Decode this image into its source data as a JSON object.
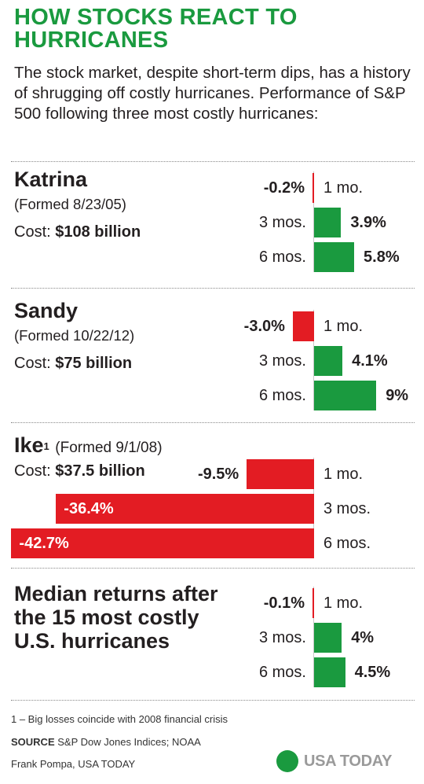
{
  "header": {
    "title": "HOW STOCKS REACT TO HURRICANES",
    "subtitle": "The stock market, despite short-term dips, has a history of shrugging off costly hurricanes. Performance of S&P 500 following three most costly hurricanes:"
  },
  "sections": [
    {
      "name": "Katrina",
      "formed": "(Formed 8/23/05)",
      "cost_label": "Cost:",
      "cost_value": "$108 billion"
    },
    {
      "name": "Sandy",
      "formed": "(Formed 10/22/12)",
      "cost_label": "Cost:",
      "cost_value": "$75 billion"
    },
    {
      "name": "Ike",
      "name_sup": "1",
      "formed": "(Formed 9/1/08)",
      "cost_label": "Cost:",
      "cost_value": "$37.5 billion"
    },
    {
      "name": "Median returns after the 15 most costly U.S. hurricanes"
    }
  ],
  "colors": {
    "positive": "#1a9a3f",
    "negative": "#e31c23",
    "title": "#1a9a3f",
    "brand_dot": "#1a9a3f",
    "brand_text": "#9a9a9a"
  },
  "chart_data": {
    "type": "bar",
    "orientation": "horizontal",
    "title": "HOW STOCKS REACT TO HURRICANES",
    "unit": "%",
    "groups": [
      {
        "name": "Katrina",
        "bars": [
          {
            "period": "1 mo.",
            "value": -0.2,
            "label": "-0.2%"
          },
          {
            "period": "3 mos.",
            "value": 3.9,
            "label": "3.9%"
          },
          {
            "period": "6 mos.",
            "value": 5.8,
            "label": "5.8%"
          }
        ]
      },
      {
        "name": "Sandy",
        "bars": [
          {
            "period": "1 mo.",
            "value": -3.0,
            "label": "-3.0%"
          },
          {
            "period": "3 mos.",
            "value": 4.1,
            "label": "4.1%"
          },
          {
            "period": "6 mos.",
            "value": 9,
            "label": "9%"
          }
        ]
      },
      {
        "name": "Ike",
        "bars": [
          {
            "period": "1 mo.",
            "value": -9.5,
            "label": "-9.5%"
          },
          {
            "period": "3 mos.",
            "value": -36.4,
            "label": "-36.4%"
          },
          {
            "period": "6 mos.",
            "value": -42.7,
            "label": "-42.7%"
          }
        ]
      },
      {
        "name": "Median returns after the 15 most costly U.S. hurricanes",
        "bars": [
          {
            "period": "1 mo.",
            "value": -0.1,
            "label": "-0.1%"
          },
          {
            "period": "3 mos.",
            "value": 4,
            "label": "4%"
          },
          {
            "period": "6 mos.",
            "value": 4.5,
            "label": "4.5%"
          }
        ]
      }
    ]
  },
  "footer": {
    "footnote": "1 – Big losses coincide with 2008 financial crisis",
    "source_label": "SOURCE",
    "source_text": "S&P Dow Jones Indices; NOAA",
    "credit": "Frank Pompa, USA TODAY",
    "brand": "USA TODAY"
  }
}
